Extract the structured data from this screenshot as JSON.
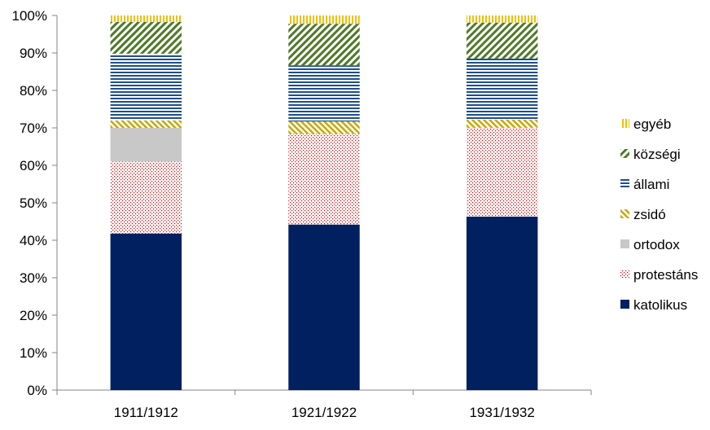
{
  "chart_data": {
    "type": "bar",
    "stacked": "percent",
    "categories": [
      "1911/1912",
      "1921/1922",
      "1931/1932"
    ],
    "y_ticks": [
      "0%",
      "10%",
      "20%",
      "30%",
      "40%",
      "50%",
      "60%",
      "70%",
      "80%",
      "90%",
      "100%"
    ],
    "ylim": [
      0,
      100
    ],
    "grid": false,
    "legend": "right",
    "series": [
      {
        "name": "katolikus",
        "values": [
          41.8,
          44.2,
          46.3
        ],
        "color": "#002060",
        "pattern": "solid"
      },
      {
        "name": "protestáns",
        "values": [
          19.2,
          24.2,
          23.7
        ],
        "color": "#c00000",
        "pattern": "dots"
      },
      {
        "name": "ortodox",
        "values": [
          9.0,
          0.0,
          0.0
        ],
        "color": "#c8c8c8",
        "pattern": "solid"
      },
      {
        "name": "zsidó",
        "values": [
          2.0,
          3.3,
          2.2
        ],
        "color": "#c8a800",
        "pattern": "diag-down"
      },
      {
        "name": "állami",
        "values": [
          17.8,
          15.0,
          16.3
        ],
        "color": "#1f4e8c",
        "pattern": "horiz"
      },
      {
        "name": "községi",
        "values": [
          8.5,
          11.1,
          9.6
        ],
        "color": "#4f7a28",
        "pattern": "diag-up"
      },
      {
        "name": "egyéb",
        "values": [
          1.7,
          2.2,
          1.9
        ],
        "color": "#f0c000",
        "pattern": "vert"
      }
    ],
    "legend_order": [
      "egyéb",
      "községi",
      "állami",
      "zsidó",
      "ortodox",
      "protestáns",
      "katolikus"
    ]
  }
}
